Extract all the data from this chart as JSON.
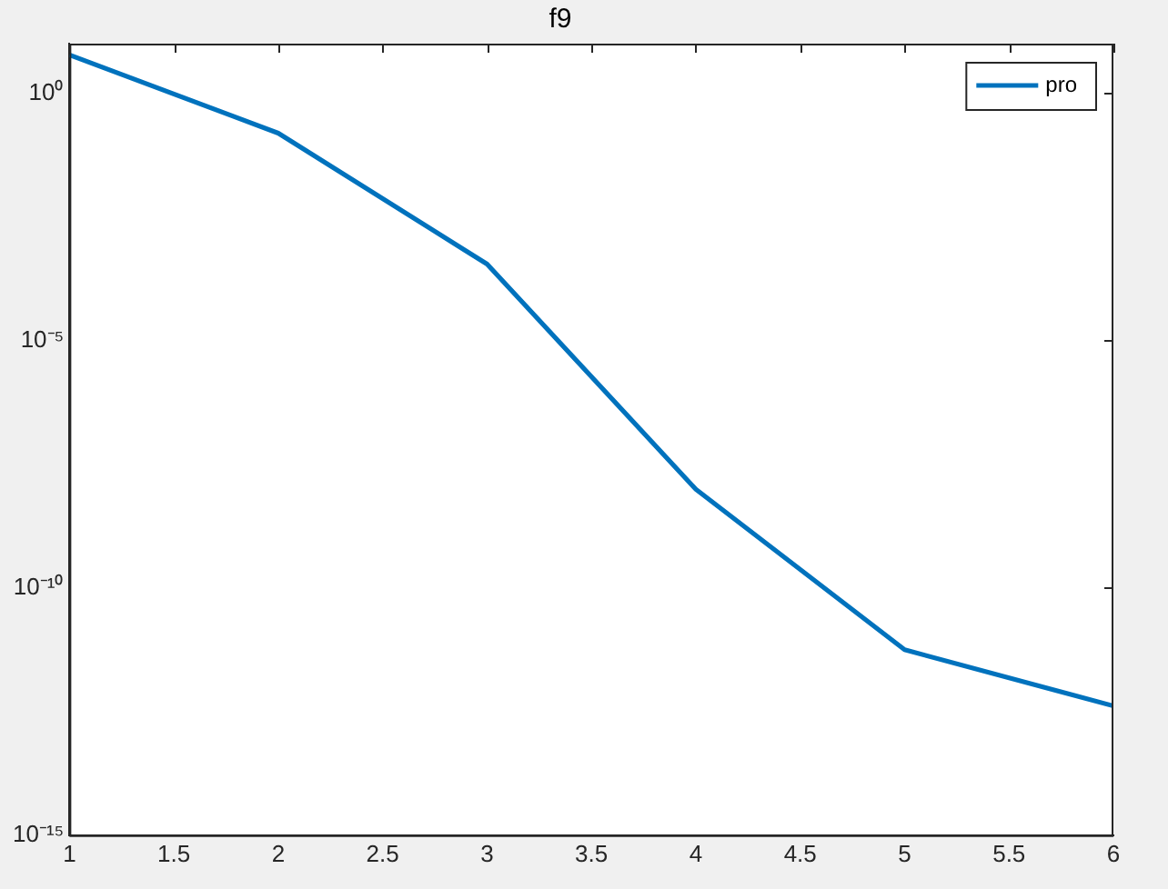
{
  "chart_data": {
    "type": "line",
    "title": "f9",
    "x": [
      1,
      2,
      3,
      4,
      5,
      6
    ],
    "series": [
      {
        "name": "pro",
        "color": "#0072bd",
        "values": [
          5.9,
          0.155,
          0.00035,
          9.8e-09,
          5.6e-12,
          4.1e-13
        ]
      }
    ],
    "xlim": [
      1,
      6
    ],
    "xticks": [
      1,
      1.5,
      2,
      2.5,
      3,
      3.5,
      4,
      4.5,
      5,
      5.5,
      6
    ],
    "ylim": [
      1e-15,
      10
    ],
    "yticks": [
      {
        "value": 1,
        "label": "10⁰"
      },
      {
        "value": 1e-05,
        "label": "10⁻⁵"
      },
      {
        "value": 1e-10,
        "label": "10⁻¹⁰"
      },
      {
        "value": 1e-15,
        "label": "10⁻¹⁵"
      }
    ],
    "log": "y",
    "grid": false,
    "legend": "top right",
    "marker": "none",
    "line_style": "solid"
  }
}
